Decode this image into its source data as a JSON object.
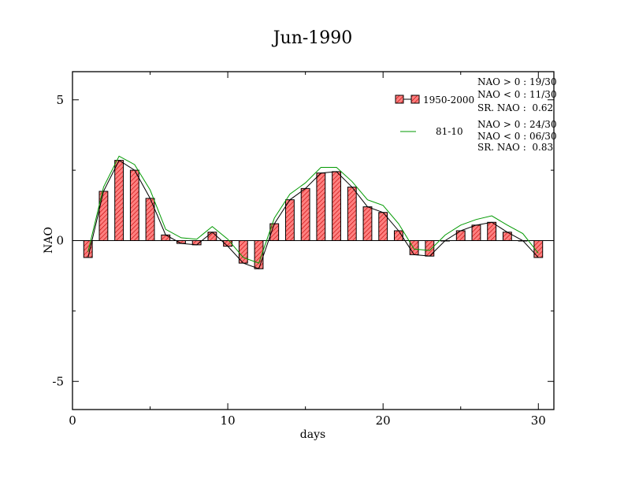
{
  "chart_data": {
    "type": "bar",
    "title": "Jun-1990",
    "xlabel": "days",
    "ylabel": "NAO",
    "xlim": [
      0,
      31
    ],
    "ylim": [
      -6,
      6
    ],
    "xticks": [
      0,
      10,
      20,
      30
    ],
    "xtick_labels": [
      "0",
      "10",
      "20",
      "30"
    ],
    "yticks": [
      -5,
      0,
      5
    ],
    "ytick_labels": [
      "-5",
      "0",
      "5"
    ],
    "grid": false,
    "legend_position": "top-right",
    "x": [
      1,
      2,
      3,
      4,
      5,
      6,
      7,
      8,
      9,
      10,
      11,
      12,
      13,
      14,
      15,
      16,
      17,
      18,
      19,
      20,
      21,
      22,
      23,
      24,
      25,
      26,
      27,
      28,
      29,
      30
    ],
    "series": [
      {
        "name": "1950-2000",
        "style": "bars",
        "color": "#ff8080",
        "hatch_color": "#c00000",
        "values": [
          -0.6,
          1.75,
          2.85,
          2.5,
          1.5,
          0.2,
          -0.1,
          -0.15,
          0.3,
          -0.2,
          -0.8,
          -1.0,
          0.6,
          1.45,
          1.85,
          2.4,
          2.45,
          1.9,
          1.2,
          1.0,
          0.35,
          -0.5,
          -0.55,
          0.0,
          0.35,
          0.55,
          0.65,
          0.3,
          0.0,
          -0.6
        ]
      },
      {
        "name": "",
        "style": "line",
        "color": "#000000",
        "values": [
          -0.6,
          1.75,
          2.85,
          2.5,
          1.5,
          0.2,
          -0.1,
          -0.15,
          0.3,
          -0.2,
          -0.8,
          -1.0,
          0.6,
          1.45,
          1.85,
          2.4,
          2.45,
          1.9,
          1.2,
          1.0,
          0.35,
          -0.5,
          -0.55,
          0.0,
          0.35,
          0.55,
          0.65,
          0.3,
          0.0,
          -0.6
        ]
      },
      {
        "name": "81-10",
        "style": "line",
        "color": "#009900",
        "values": [
          -0.4,
          1.9,
          3.0,
          2.7,
          1.8,
          0.4,
          0.1,
          0.05,
          0.5,
          0.05,
          -0.6,
          -0.8,
          0.8,
          1.65,
          2.05,
          2.6,
          2.6,
          2.1,
          1.45,
          1.25,
          0.6,
          -0.3,
          -0.35,
          0.2,
          0.55,
          0.75,
          0.88,
          0.55,
          0.25,
          -0.45
        ]
      }
    ],
    "annotations": [
      {
        "group": "1950-2000",
        "lines": [
          "NAO > 0 : 19/30",
          "NAO < 0 : 11/30",
          "SR. NAO :  0.62"
        ]
      },
      {
        "group": "81-10",
        "lines": [
          "NAO > 0 : 24/30",
          "NAO < 0 : 06/30",
          "SR. NAO :  0.83"
        ]
      }
    ]
  }
}
